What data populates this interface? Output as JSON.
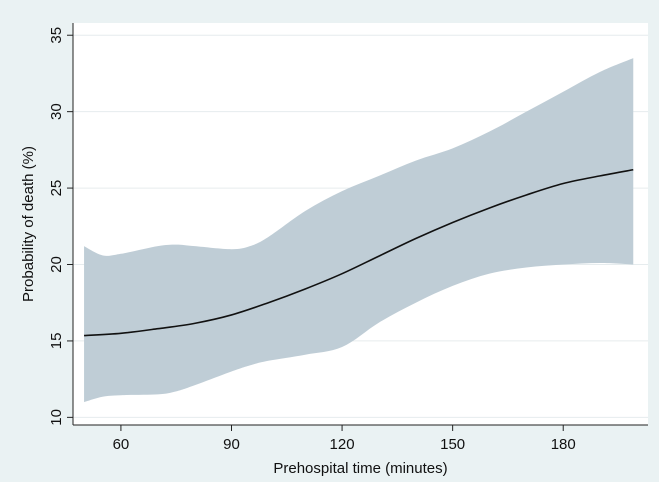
{
  "colors": {
    "figure_background": "#eaf2f3",
    "plot_background": "#ffffff",
    "gridline": "#e6ecee",
    "band_fill": "#bfcdd6",
    "line": "#111111"
  },
  "chart_data": {
    "type": "line",
    "title": "",
    "xlabel": "Prehospital time (minutes)",
    "ylabel": "Probability of death (%)",
    "xlim": [
      47,
      203
    ],
    "ylim": [
      9.5,
      35.8
    ],
    "grid": true,
    "legend": "none",
    "x_ticks": [
      60,
      90,
      120,
      150,
      180
    ],
    "y_ticks": [
      10,
      15,
      20,
      25,
      30,
      35
    ],
    "series": [
      {
        "x": [
          50,
          60,
          70,
          80,
          90,
          100,
          110,
          120,
          130,
          140,
          150,
          160,
          170,
          180,
          190,
          199
        ],
        "y": [
          15.35,
          15.5,
          15.8,
          16.15,
          16.7,
          17.5,
          18.4,
          19.4,
          20.55,
          21.7,
          22.75,
          23.7,
          24.55,
          25.3,
          25.8,
          26.2
        ]
      }
    ],
    "confidence_band": {
      "x": [
        50,
        55,
        60,
        70,
        75,
        80,
        90,
        95,
        100,
        110,
        120,
        130,
        140,
        150,
        160,
        170,
        180,
        190,
        199
      ],
      "upper": [
        21.2,
        20.6,
        20.7,
        21.2,
        21.3,
        21.2,
        21.0,
        21.2,
        21.8,
        23.5,
        24.8,
        25.8,
        26.8,
        27.6,
        28.7,
        30.0,
        31.3,
        32.6,
        33.5
      ],
      "lower": [
        11.0,
        11.35,
        11.45,
        11.5,
        11.7,
        12.1,
        13.0,
        13.4,
        13.7,
        14.1,
        14.6,
        16.2,
        17.5,
        18.6,
        19.4,
        19.8,
        20.0,
        20.1,
        20.0
      ]
    }
  }
}
